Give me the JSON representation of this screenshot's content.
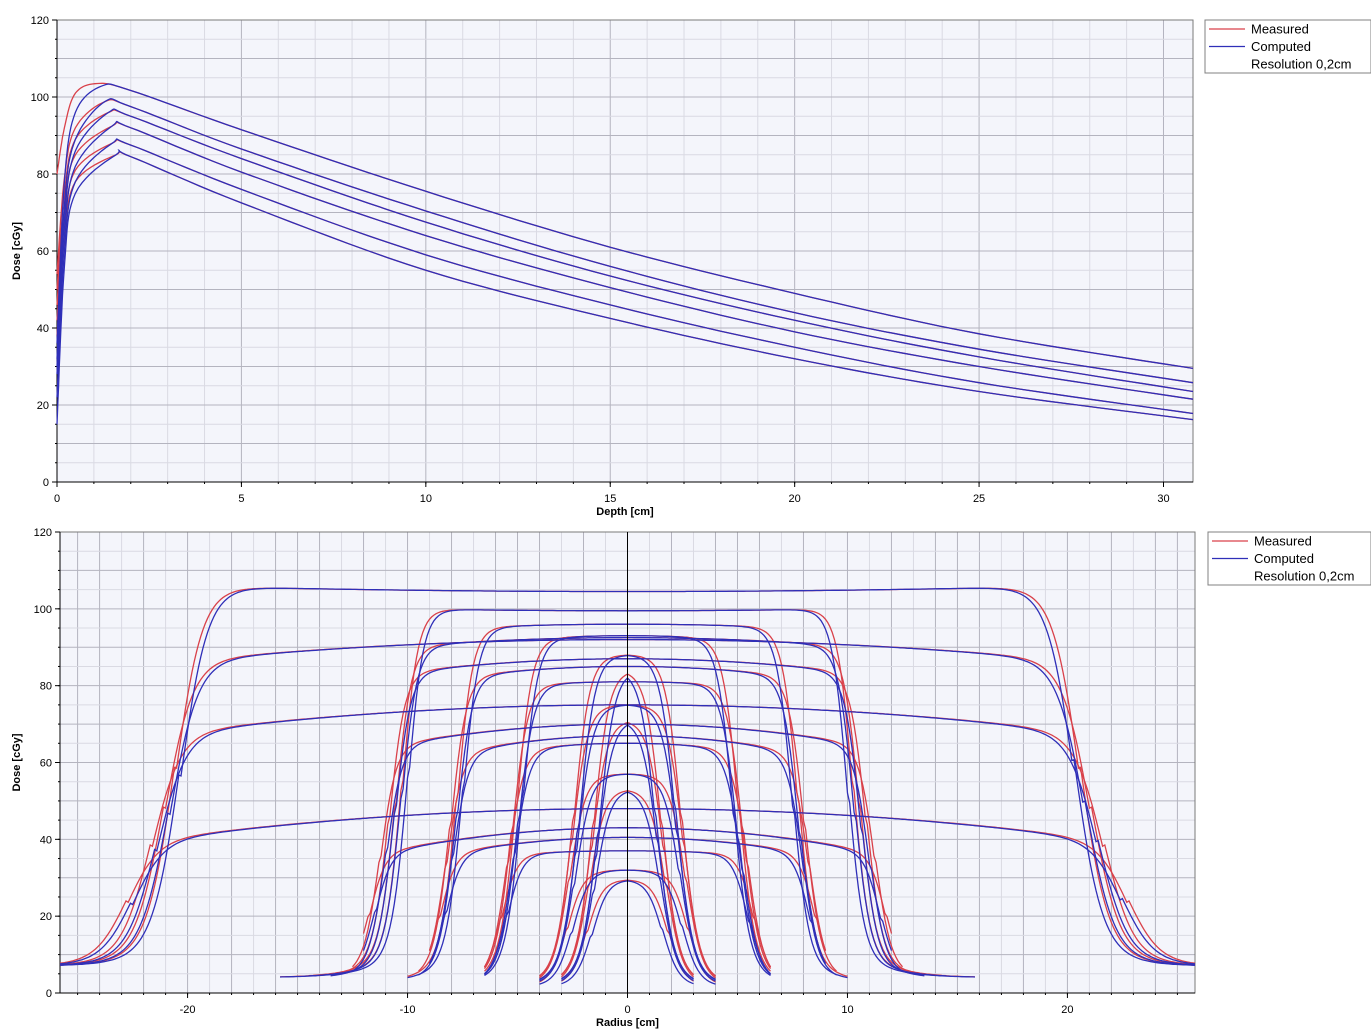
{
  "colors": {
    "measured": "#d9414a",
    "computed": "#2f2fb8",
    "plot_bg": "#f4f5fb",
    "grid_major": "#b4b4bf",
    "grid_minor": "#dadae3"
  },
  "chart_data": [
    {
      "type": "line",
      "xlabel": "Depth [cm]",
      "ylabel": "Dose [cGy]",
      "xlim": [
        0,
        30.8
      ],
      "ylim": [
        0,
        120
      ],
      "xticks": [
        0,
        5,
        10,
        15,
        20,
        25,
        30
      ],
      "yticks": [
        0,
        20,
        40,
        60,
        80,
        100,
        120
      ],
      "grid": true,
      "legend": {
        "position": "top-right",
        "entries": [
          "Measured",
          "Computed",
          "Resolution 0,2cm"
        ]
      },
      "curves": [
        {
          "dmax_depth": 1.1,
          "peak": 103.5,
          "end_30_8": 29.5
        },
        {
          "dmax_depth": 1.3,
          "peak": 98.8,
          "end_30_8": 25.8
        },
        {
          "dmax_depth": 1.4,
          "peak": 96.0,
          "end_30_8": 23.5
        },
        {
          "dmax_depth": 1.5,
          "peak": 92.5,
          "end_30_8": 21.5
        },
        {
          "dmax_depth": 1.5,
          "peak": 88.0,
          "end_30_8": 17.8
        },
        {
          "dmax_depth": 1.6,
          "peak": 85.0,
          "end_30_8": 16.2
        }
      ],
      "series": [
        {
          "name": "Measured",
          "curve_profiles": [
            {
              "x": [
                0,
                0.2,
                0.5,
                1.1,
                2,
                5,
                10,
                15,
                20,
                25,
                30.8
              ],
              "y": [
                80,
                92,
                101,
                103.5,
                101.7,
                91.5,
                75.5,
                61,
                49,
                38.5,
                29.5
              ]
            },
            {
              "x": [
                0,
                0.2,
                0.5,
                1.3,
                2,
                5,
                10,
                15,
                20,
                25,
                30.8
              ],
              "y": [
                54,
                79,
                92,
                98.8,
                97.5,
                86.5,
                70.4,
                56,
                44,
                34.5,
                25.8
              ]
            },
            {
              "x": [
                0,
                0.2,
                0.5,
                1.4,
                2,
                5,
                10,
                15,
                20,
                25,
                30.8
              ],
              "y": [
                50,
                75,
                89,
                96,
                95,
                84,
                67.5,
                53.5,
                42,
                32.5,
                23.5
              ]
            },
            {
              "x": [
                0,
                0.2,
                0.5,
                1.5,
                2,
                5,
                10,
                15,
                20,
                25,
                30.8
              ],
              "y": [
                46,
                71,
                85,
                92.5,
                92,
                80.5,
                64,
                50.5,
                39,
                30,
                21.5
              ]
            },
            {
              "x": [
                0,
                0.2,
                0.5,
                1.5,
                2,
                5,
                10,
                15,
                20,
                25,
                30.8
              ],
              "y": [
                42,
                67,
                81,
                88,
                87.5,
                76,
                59,
                46,
                35,
                25.8,
                17.8
              ]
            },
            {
              "x": [
                0,
                0.2,
                0.5,
                1.6,
                2,
                5,
                10,
                15,
                20,
                25,
                30.8
              ],
              "y": [
                38,
                63,
                78,
                85,
                84.5,
                72.5,
                55,
                42.5,
                32,
                23.5,
                16.2
              ]
            }
          ]
        },
        {
          "name": "Computed",
          "curve_profiles": [
            {
              "x": [
                0,
                0.2,
                0.5,
                1.2,
                2,
                5,
                10,
                15,
                20,
                25,
                30.8
              ],
              "y": [
                36,
                78,
                96,
                102.8,
                101.7,
                91.5,
                75.5,
                61,
                49,
                38.5,
                29.5
              ]
            },
            {
              "x": [
                0,
                0.2,
                0.5,
                1.3,
                2,
                5,
                10,
                15,
                20,
                25,
                30.8
              ],
              "y": [
                32,
                72,
                89,
                98.8,
                97.5,
                86.5,
                70.4,
                56,
                44,
                34.5,
                25.8
              ]
            },
            {
              "x": [
                0,
                0.2,
                0.5,
                1.4,
                2,
                5,
                10,
                15,
                20,
                25,
                30.8
              ],
              "y": [
                30,
                68,
                86,
                96,
                95,
                84,
                67.5,
                53.5,
                42,
                32.5,
                23.5
              ]
            },
            {
              "x": [
                0,
                0.2,
                0.5,
                1.5,
                2,
                5,
                10,
                15,
                20,
                25,
                30.8
              ],
              "y": [
                28,
                64,
                82,
                92.5,
                92,
                80.5,
                64,
                50.5,
                39,
                30,
                21.5
              ]
            },
            {
              "x": [
                0,
                0.2,
                0.5,
                1.5,
                2,
                5,
                10,
                15,
                20,
                25,
                30.8
              ],
              "y": [
                22,
                60,
                78,
                88,
                87.5,
                76,
                59,
                46,
                35,
                25.8,
                17.8
              ]
            },
            {
              "x": [
                0,
                0.2,
                0.5,
                1.6,
                2,
                5,
                10,
                15,
                20,
                25,
                30.8
              ],
              "y": [
                15,
                56,
                75,
                85,
                84.5,
                72.5,
                55,
                42.5,
                32,
                23.5,
                16.2
              ]
            }
          ]
        }
      ]
    },
    {
      "type": "line",
      "xlabel": "Radius [cm]",
      "ylabel": "Dose [cGy]",
      "xlim": [
        -25.8,
        25.8
      ],
      "ylim": [
        0,
        120
      ],
      "xticks": [
        -20,
        -10,
        0,
        10,
        20
      ],
      "yticks": [
        0,
        20,
        40,
        60,
        80,
        100,
        120
      ],
      "grid": true,
      "legend": {
        "position": "top-right",
        "entries": [
          "Measured",
          "Computed",
          "Resolution 0,2cm"
        ]
      },
      "profiles": [
        {
          "halfwidth": 20.3,
          "plateau_center": 104.5,
          "plateau_edge": 106,
          "tail": 7,
          "extent": 25.8
        },
        {
          "halfwidth": 20.8,
          "plateau_center": 92,
          "plateau_edge": 86,
          "tail": 7,
          "extent": 25.8
        },
        {
          "halfwidth": 21.4,
          "plateau_center": 75,
          "plateau_edge": 67,
          "tail": 7,
          "extent": 25.8
        },
        {
          "halfwidth": 22.5,
          "plateau_center": 48,
          "plateau_edge": 39,
          "tail": 7,
          "extent": 25.8
        },
        {
          "halfwidth": 10.0,
          "plateau_center": 99.5,
          "plateau_edge": 100,
          "tail": 4,
          "extent": 15.8
        },
        {
          "halfwidth": 10.3,
          "plateau_center": 92.5,
          "plateau_edge": 90,
          "tail": 4,
          "extent": 14.5
        },
        {
          "halfwidth": 10.6,
          "plateau_center": 87,
          "plateau_edge": 83,
          "tail": 3.5,
          "extent": 13.5
        },
        {
          "halfwidth": 11.0,
          "plateau_center": 70,
          "plateau_edge": 64,
          "tail": 3,
          "extent": 12.5
        },
        {
          "halfwidth": 11.5,
          "plateau_center": 43,
          "plateau_edge": 36,
          "tail": 3,
          "extent": 12
        },
        {
          "halfwidth": 7.5,
          "plateau_center": 96,
          "plateau_edge": 95,
          "tail": 2.5,
          "extent": 10
        },
        {
          "halfwidth": 7.8,
          "plateau_center": 85,
          "plateau_edge": 82,
          "tail": 2,
          "extent": 9.5
        },
        {
          "halfwidth": 8.0,
          "plateau_center": 67,
          "plateau_edge": 62,
          "tail": 2,
          "extent": 9
        },
        {
          "halfwidth": 8.3,
          "plateau_center": 40.5,
          "plateau_edge": 36,
          "tail": 2,
          "extent": 9
        },
        {
          "halfwidth": 4.8,
          "plateau_center": 93,
          "plateau_edge": 92,
          "tail": 1.5,
          "extent": 6.5
        },
        {
          "halfwidth": 5.0,
          "plateau_center": 81,
          "plateau_edge": 80,
          "tail": 1.5,
          "extent": 6.5
        },
        {
          "halfwidth": 5.2,
          "plateau_center": 65,
          "plateau_edge": 63,
          "tail": 1.5,
          "extent": 6.5
        },
        {
          "halfwidth": 5.5,
          "plateau_center": 37,
          "plateau_edge": 36,
          "tail": 1.5,
          "extent": 6.5
        },
        {
          "halfwidth": 2.2,
          "plateau_center": 88,
          "plateau_edge": 87,
          "tail": 1,
          "extent": 4
        },
        {
          "halfwidth": 2.3,
          "plateau_center": 75,
          "plateau_edge": 74,
          "tail": 1,
          "extent": 4
        },
        {
          "halfwidth": 2.4,
          "plateau_center": 57,
          "plateau_edge": 56,
          "tail": 1,
          "extent": 4
        },
        {
          "halfwidth": 2.5,
          "plateau_center": 32,
          "plateau_edge": 31,
          "tail": 1,
          "extent": 4
        },
        {
          "halfwidth": 1.3,
          "plateau_center": 84,
          "plateau_edge": 84,
          "tail": 1,
          "extent": 3
        },
        {
          "halfwidth": 1.4,
          "plateau_center": 71,
          "plateau_edge": 71,
          "tail": 1,
          "extent": 3
        },
        {
          "halfwidth": 1.5,
          "plateau_center": 53,
          "plateau_edge": 53,
          "tail": 1,
          "extent": 3
        },
        {
          "halfwidth": 1.6,
          "plateau_center": 29.5,
          "plateau_edge": 29.5,
          "tail": 1,
          "extent": 3
        }
      ],
      "series": [
        {
          "name": "Measured"
        },
        {
          "name": "Computed"
        }
      ]
    }
  ]
}
